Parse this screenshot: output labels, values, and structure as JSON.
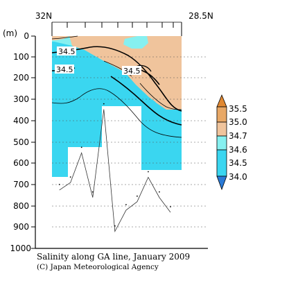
{
  "chart_data": {
    "type": "heatmap",
    "title": "Salinity along GA line, January 2009",
    "credit": "(C) Japan Meteorological Agency",
    "x_tick_labels": [
      "32N",
      "28.5N"
    ],
    "x_range": [
      32.0,
      28.5
    ],
    "y_unit_label": "(m)",
    "y_tick_labels": [
      "0",
      "100",
      "200",
      "300",
      "400",
      "500",
      "600",
      "700",
      "800",
      "900",
      "1000"
    ],
    "y_range": [
      0,
      1000
    ],
    "y_inverted": true,
    "grid": true,
    "colorbar": {
      "labels": [
        "35.5",
        "35.0",
        "34.7",
        "34.6",
        "34.5",
        "34.0"
      ],
      "levels": [
        34.0,
        34.5,
        34.6,
        34.7,
        35.0,
        35.5
      ],
      "colors": [
        "#2a7ad6",
        "#3ad6f0",
        "#86f0f0",
        "#f0c49c",
        "#e8a866",
        "#e08832"
      ]
    },
    "contour_labels": [
      {
        "text": "34.5",
        "depth": 70
      },
      {
        "text": "34.5",
        "depth": 160
      },
      {
        "text": "34.5",
        "depth": 160
      }
    ],
    "station_latitudes": [
      31.8,
      31.5,
      31.2,
      30.9,
      30.6,
      30.3,
      30.0,
      29.7,
      29.4,
      29.1,
      28.8
    ],
    "bottom_depth_m": [
      725,
      690,
      550,
      760,
      345,
      920,
      820,
      780,
      665,
      760,
      830
    ]
  },
  "colors": {
    "low_salinity": "#3ad6f0",
    "mid_salinity": "#86f0f0",
    "high_salinity": "#f0c49c",
    "axis": "#000000"
  }
}
